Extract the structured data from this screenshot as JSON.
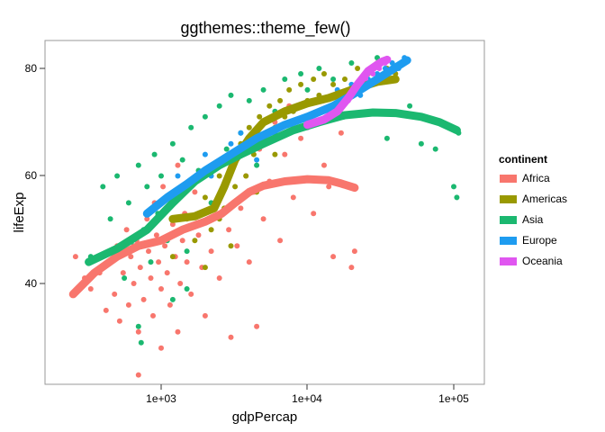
{
  "chart_data": {
    "type": "scatter",
    "title": "ggthemes::theme_few()",
    "xlabel": "gdpPercap",
    "ylabel": "lifeExp",
    "x_scale": "log10",
    "xlim": [
      230,
      145000
    ],
    "ylim": [
      21,
      88
    ],
    "x_ticks": [
      {
        "value": 1000,
        "label": "1e+03"
      },
      {
        "value": 10000,
        "label": "1e+04"
      },
      {
        "value": 100000,
        "label": "1e+05"
      }
    ],
    "y_ticks": [
      {
        "value": 40,
        "label": "40"
      },
      {
        "value": 60,
        "label": "60"
      },
      {
        "value": 80,
        "label": "80"
      }
    ],
    "grid": false,
    "legend": {
      "title": "continent",
      "position": "right"
    },
    "series": [
      {
        "name": "Africa",
        "color": "#F8766D",
        "points": [
          [
            260,
            45
          ],
          [
            300,
            41
          ],
          [
            330,
            39
          ],
          [
            380,
            42
          ],
          [
            420,
            35
          ],
          [
            450,
            44
          ],
          [
            480,
            38
          ],
          [
            500,
            47
          ],
          [
            520,
            33
          ],
          [
            550,
            42
          ],
          [
            580,
            50
          ],
          [
            600,
            36
          ],
          [
            620,
            45
          ],
          [
            650,
            40
          ],
          [
            680,
            48
          ],
          [
            700,
            31
          ],
          [
            720,
            43
          ],
          [
            760,
            37
          ],
          [
            800,
            52
          ],
          [
            820,
            46
          ],
          [
            850,
            41
          ],
          [
            880,
            34
          ],
          [
            900,
            55
          ],
          [
            930,
            49
          ],
          [
            960,
            44
          ],
          [
            1000,
            39
          ],
          [
            1030,
            58
          ],
          [
            1060,
            47
          ],
          [
            1100,
            42
          ],
          [
            1150,
            36
          ],
          [
            1200,
            51
          ],
          [
            1250,
            45
          ],
          [
            1300,
            62
          ],
          [
            1350,
            40
          ],
          [
            1400,
            48
          ],
          [
            1450,
            53
          ],
          [
            1500,
            44
          ],
          [
            1600,
            38
          ],
          [
            1700,
            57
          ],
          [
            1800,
            49
          ],
          [
            1900,
            43
          ],
          [
            2000,
            61
          ],
          [
            2100,
            52
          ],
          [
            2200,
            46
          ],
          [
            2300,
            55
          ],
          [
            2500,
            41
          ],
          [
            2700,
            58
          ],
          [
            2900,
            50
          ],
          [
            3100,
            63
          ],
          [
            3300,
            47
          ],
          [
            3500,
            54
          ],
          [
            3800,
            60
          ],
          [
            4000,
            44
          ],
          [
            4300,
            57
          ],
          [
            4700,
            65
          ],
          [
            5000,
            52
          ],
          [
            5500,
            59
          ],
          [
            6000,
            70
          ],
          [
            6500,
            48
          ],
          [
            7000,
            64
          ],
          [
            7500,
            73
          ],
          [
            8000,
            56
          ],
          [
            9000,
            67
          ],
          [
            10000,
            71
          ],
          [
            11000,
            53
          ],
          [
            12000,
            72
          ],
          [
            13000,
            62
          ],
          [
            14000,
            58
          ],
          [
            15000,
            45
          ],
          [
            17000,
            68
          ],
          [
            20000,
            43
          ],
          [
            21000,
            46
          ],
          [
            700,
            23
          ],
          [
            1000,
            28
          ],
          [
            1300,
            31
          ],
          [
            3000,
            30
          ],
          [
            4500,
            32
          ],
          [
            2000,
            34
          ]
        ],
        "smooth": [
          [
            250,
            38
          ],
          [
            350,
            42
          ],
          [
            500,
            45
          ],
          [
            700,
            47
          ],
          [
            1000,
            48
          ],
          [
            1400,
            50
          ],
          [
            2000,
            51.5
          ],
          [
            2600,
            53
          ],
          [
            3200,
            55
          ],
          [
            4000,
            57
          ],
          [
            5000,
            58.2
          ],
          [
            7000,
            59
          ],
          [
            10000,
            59.4
          ],
          [
            14000,
            59.2
          ],
          [
            17000,
            58.6
          ],
          [
            21000,
            57.8
          ]
        ]
      },
      {
        "name": "Americas",
        "color": "#999900",
        "points": [
          [
            1200,
            45
          ],
          [
            1500,
            52
          ],
          [
            1700,
            48
          ],
          [
            2000,
            56
          ],
          [
            2200,
            50
          ],
          [
            2500,
            60
          ],
          [
            2700,
            54
          ],
          [
            3000,
            63
          ],
          [
            3200,
            58
          ],
          [
            3500,
            66
          ],
          [
            3800,
            60
          ],
          [
            4000,
            69
          ],
          [
            4300,
            64
          ],
          [
            4700,
            71
          ],
          [
            5000,
            67
          ],
          [
            5500,
            73
          ],
          [
            6000,
            69
          ],
          [
            6500,
            74
          ],
          [
            7000,
            71
          ],
          [
            7500,
            76
          ],
          [
            8000,
            72
          ],
          [
            9000,
            77
          ],
          [
            10000,
            74
          ],
          [
            11000,
            78
          ],
          [
            12000,
            75
          ],
          [
            13000,
            79
          ],
          [
            15000,
            77
          ],
          [
            18000,
            78
          ],
          [
            22000,
            80
          ],
          [
            26000,
            79
          ],
          [
            30000,
            81
          ],
          [
            35000,
            80
          ],
          [
            40000,
            79
          ],
          [
            3000,
            47
          ],
          [
            2000,
            43
          ],
          [
            2500,
            52
          ],
          [
            4500,
            57
          ],
          [
            6000,
            64
          ]
        ],
        "smooth": [
          [
            1200,
            52
          ],
          [
            1700,
            52.5
          ],
          [
            2300,
            54
          ],
          [
            2700,
            58
          ],
          [
            3200,
            63
          ],
          [
            4000,
            67
          ],
          [
            5000,
            70
          ],
          [
            7000,
            72
          ],
          [
            10000,
            73.5
          ],
          [
            14000,
            74.5
          ],
          [
            20000,
            76
          ],
          [
            30000,
            77.5
          ],
          [
            40000,
            78
          ]
        ]
      },
      {
        "name": "Asia",
        "color": "#1BB870",
        "points": [
          [
            330,
            45
          ],
          [
            400,
            58
          ],
          [
            450,
            52
          ],
          [
            500,
            60
          ],
          [
            560,
            41
          ],
          [
            600,
            55
          ],
          [
            650,
            47
          ],
          [
            700,
            62
          ],
          [
            760,
            50
          ],
          [
            800,
            58
          ],
          [
            850,
            44
          ],
          [
            900,
            64
          ],
          [
            950,
            53
          ],
          [
            1000,
            60
          ],
          [
            1100,
            48
          ],
          [
            1200,
            66
          ],
          [
            1300,
            57
          ],
          [
            1400,
            63
          ],
          [
            1500,
            46
          ],
          [
            1600,
            69
          ],
          [
            1800,
            61
          ],
          [
            2000,
            71
          ],
          [
            2200,
            55
          ],
          [
            2500,
            73
          ],
          [
            2800,
            65
          ],
          [
            3000,
            75
          ],
          [
            3500,
            68
          ],
          [
            4000,
            74
          ],
          [
            4500,
            62
          ],
          [
            5000,
            76
          ],
          [
            6000,
            72
          ],
          [
            7000,
            78
          ],
          [
            8000,
            70
          ],
          [
            9000,
            79
          ],
          [
            10000,
            76
          ],
          [
            12000,
            80
          ],
          [
            15000,
            78
          ],
          [
            20000,
            81
          ],
          [
            25000,
            79
          ],
          [
            30000,
            82
          ],
          [
            40000,
            80
          ],
          [
            60000,
            66
          ],
          [
            75000,
            65
          ],
          [
            100000,
            58
          ],
          [
            105000,
            56
          ],
          [
            108000,
            68
          ],
          [
            50000,
            73
          ],
          [
            35000,
            67
          ],
          [
            700,
            32
          ],
          [
            730,
            29
          ],
          [
            1500,
            39
          ],
          [
            1200,
            37
          ]
        ],
        "smooth": [
          [
            320,
            44
          ],
          [
            500,
            46.5
          ],
          [
            800,
            50
          ],
          [
            1200,
            55
          ],
          [
            1700,
            59
          ],
          [
            2500,
            62
          ],
          [
            3500,
            64
          ],
          [
            5000,
            66
          ],
          [
            8000,
            68.5
          ],
          [
            12000,
            70
          ],
          [
            18000,
            71.3
          ],
          [
            28000,
            71.8
          ],
          [
            40000,
            71.7
          ],
          [
            60000,
            71
          ],
          [
            80000,
            70
          ],
          [
            105000,
            68.5
          ]
        ]
      },
      {
        "name": "Europe",
        "color": "#1E9CF0",
        "points": [
          [
            1000,
            55
          ],
          [
            1300,
            60
          ],
          [
            1600,
            58
          ],
          [
            2000,
            64
          ],
          [
            2500,
            62
          ],
          [
            3000,
            66
          ],
          [
            3500,
            68
          ],
          [
            4000,
            65
          ],
          [
            5000,
            70
          ],
          [
            6000,
            68
          ],
          [
            7000,
            72
          ],
          [
            8000,
            70
          ],
          [
            9000,
            73
          ],
          [
            10000,
            71
          ],
          [
            12000,
            74
          ],
          [
            14000,
            72
          ],
          [
            16000,
            76
          ],
          [
            18000,
            74
          ],
          [
            20000,
            77
          ],
          [
            23000,
            75
          ],
          [
            26000,
            78
          ],
          [
            30000,
            79
          ],
          [
            34000,
            80
          ],
          [
            38000,
            81
          ],
          [
            42000,
            80
          ],
          [
            46000,
            82
          ],
          [
            2200,
            60
          ],
          [
            4500,
            63
          ]
        ],
        "smooth": [
          [
            800,
            53
          ],
          [
            1100,
            56
          ],
          [
            1500,
            58.5
          ],
          [
            2000,
            61
          ],
          [
            3000,
            64
          ],
          [
            4500,
            67
          ],
          [
            7000,
            69.5
          ],
          [
            10000,
            71
          ],
          [
            15000,
            73
          ],
          [
            20000,
            75
          ],
          [
            30000,
            78
          ],
          [
            48000,
            81.5
          ]
        ]
      },
      {
        "name": "Oceania",
        "color": "#E056F0",
        "points": [
          [
            10000,
            69
          ],
          [
            12000,
            70
          ],
          [
            14000,
            71
          ],
          [
            16000,
            72
          ],
          [
            19000,
            74
          ],
          [
            22000,
            76
          ],
          [
            25000,
            78
          ],
          [
            28000,
            79
          ],
          [
            31000,
            80
          ],
          [
            34000,
            81
          ]
        ],
        "smooth": [
          [
            10000,
            69.5
          ],
          [
            13000,
            70.5
          ],
          [
            16000,
            72
          ],
          [
            19000,
            74.5
          ],
          [
            22000,
            77
          ],
          [
            26000,
            79.5
          ],
          [
            32000,
            81.2
          ],
          [
            35000,
            81.6
          ]
        ]
      }
    ]
  }
}
